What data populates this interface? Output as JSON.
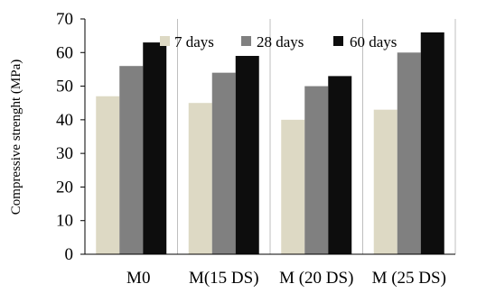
{
  "chart_data": {
    "type": "bar",
    "title": "",
    "xlabel": "",
    "ylabel": "Compressive strenght  (MPa)",
    "ylim": [
      0,
      70
    ],
    "yticks": [
      0,
      10,
      20,
      30,
      40,
      50,
      60,
      70
    ],
    "grid": "vertical lines between categories",
    "legend_position": "top",
    "categories": [
      "M0",
      "M(15 DS)",
      "M (20 DS)",
      "M (25 DS)"
    ],
    "series": [
      {
        "name": "7 days",
        "color": "#ddd9c4",
        "values": [
          47,
          45,
          40,
          43
        ]
      },
      {
        "name": "28 days",
        "color": "#808080",
        "values": [
          56,
          54,
          50,
          60
        ]
      },
      {
        "name": "60 days",
        "color": "#0d0d0d",
        "values": [
          63,
          59,
          53,
          66
        ]
      }
    ]
  }
}
